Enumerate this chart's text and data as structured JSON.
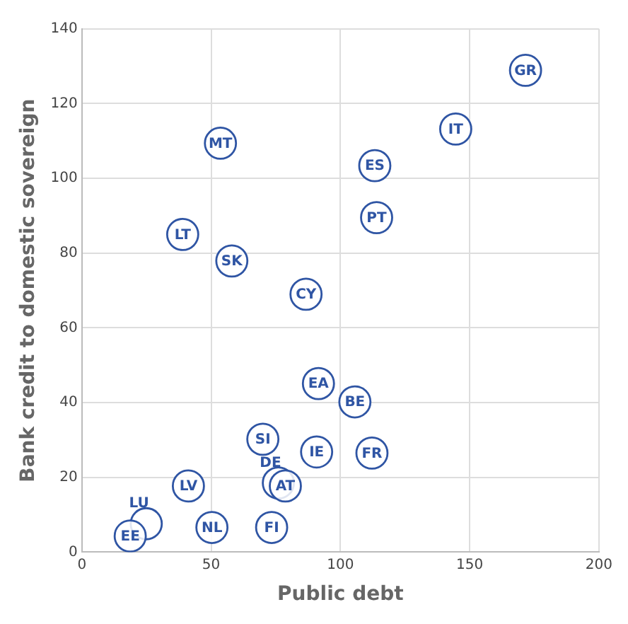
{
  "chart_data": {
    "type": "scatter",
    "xlabel": "Public debt",
    "ylabel": "Bank credit to domestic sovereign",
    "x": [
      171.6,
      144.6,
      53.6,
      113.3,
      114,
      39,
      58,
      86.7,
      91.5,
      105.6,
      70,
      90.8,
      112.2,
      76,
      78.7,
      41.2,
      24.9,
      18.7,
      50.3,
      73.4
    ],
    "values": [
      128.9,
      113.2,
      109.4,
      103.4,
      89.5,
      85,
      77.9,
      69,
      45.1,
      40.2,
      30.2,
      26.8,
      26.5,
      18.5,
      17.7,
      17.7,
      7.6,
      4.3,
      6.6,
      6.6
    ],
    "value_labels": [
      "GR",
      "IT",
      "MT",
      "ES",
      "PT",
      "LT",
      "SK",
      "CY",
      "EA",
      "BE",
      "SI",
      "IE",
      "FR",
      "DE",
      "AT",
      "LV",
      "LU",
      "EE",
      "NL",
      "FI"
    ],
    "color": "#2f55a4",
    "marker": "circle",
    "grid": true,
    "legend": false,
    "xlim": [
      0,
      200
    ],
    "xticks": [
      0,
      50,
      100,
      150,
      200
    ],
    "ylim": [
      0,
      140
    ],
    "yticks": [
      0,
      20,
      40,
      60,
      80,
      100,
      120,
      140
    ]
  }
}
